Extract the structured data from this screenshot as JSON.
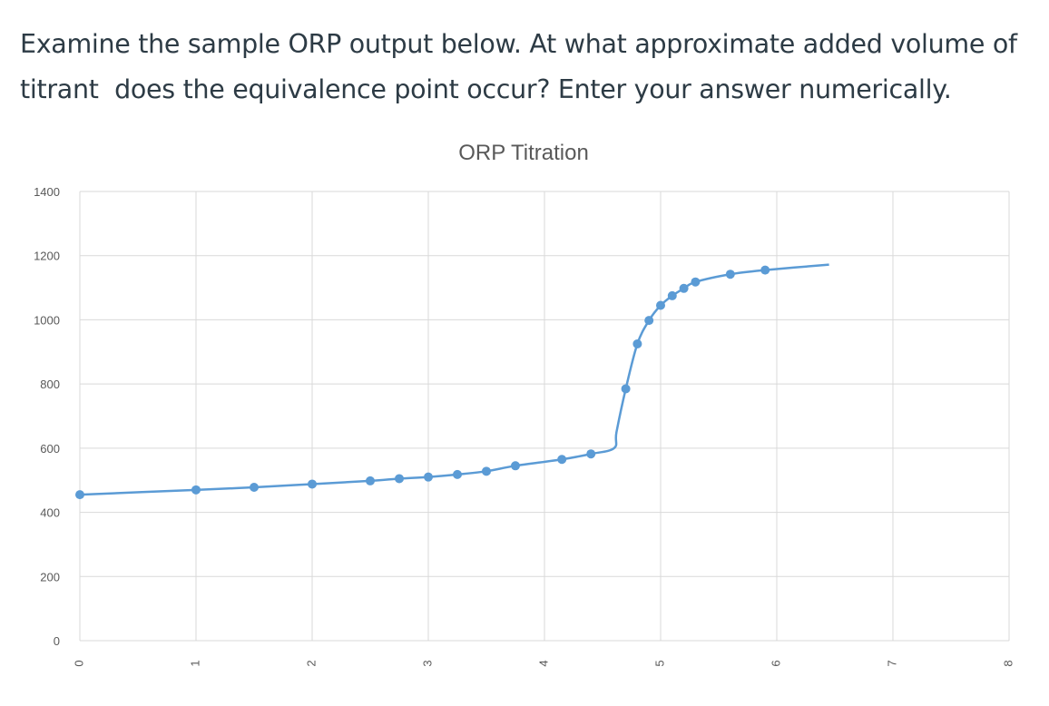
{
  "question": {
    "line1": "Examine the sample ORP output below. At what approximate added volume of",
    "line2": "titrant  does the equivalence point occur? Enter your answer numerically."
  },
  "colors": {
    "series": "#5b9bd5",
    "grid": "#d9d9d9",
    "text": "#595959"
  },
  "chart_data": {
    "type": "scatter",
    "title": "ORP Titration",
    "xlabel": "",
    "ylabel": "",
    "xlim": [
      0,
      8
    ],
    "ylim": [
      0,
      1400
    ],
    "x_ticks": [
      0,
      1,
      2,
      3,
      4,
      5,
      6,
      7,
      8
    ],
    "y_ticks": [
      0,
      200,
      400,
      600,
      800,
      1000,
      1200,
      1400
    ],
    "grid": true,
    "legend": "none",
    "series": [
      {
        "name": "",
        "smooth_line": true,
        "markers": true,
        "points": [
          {
            "x": 0.0,
            "y": 455
          },
          {
            "x": 1.0,
            "y": 470
          },
          {
            "x": 1.5,
            "y": 478
          },
          {
            "x": 2.0,
            "y": 488
          },
          {
            "x": 2.5,
            "y": 498
          },
          {
            "x": 2.75,
            "y": 505
          },
          {
            "x": 3.0,
            "y": 510
          },
          {
            "x": 3.25,
            "y": 518
          },
          {
            "x": 3.5,
            "y": 528
          },
          {
            "x": 3.75,
            "y": 545
          },
          {
            "x": 4.15,
            "y": 565
          },
          {
            "x": 4.4,
            "y": 582
          },
          {
            "x": 4.7,
            "y": 785
          },
          {
            "x": 4.8,
            "y": 925
          },
          {
            "x": 4.9,
            "y": 998
          },
          {
            "x": 5.0,
            "y": 1045
          },
          {
            "x": 5.1,
            "y": 1075
          },
          {
            "x": 5.2,
            "y": 1098
          },
          {
            "x": 5.3,
            "y": 1118
          },
          {
            "x": 5.6,
            "y": 1142
          },
          {
            "x": 5.9,
            "y": 1155
          }
        ],
        "line_only_points": [
          {
            "x": 4.6,
            "y": 600
          },
          {
            "x": 4.62,
            "y": 650
          },
          {
            "x": 6.45,
            "y": 1172
          }
        ]
      }
    ]
  }
}
